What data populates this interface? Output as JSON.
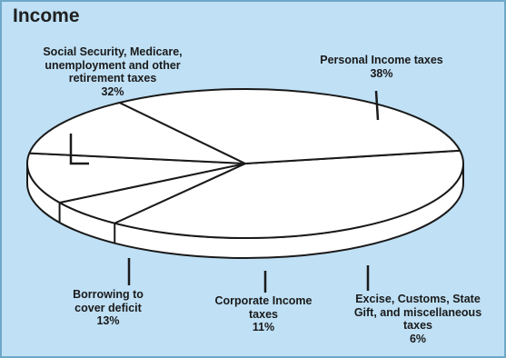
{
  "chart_data": {
    "type": "pie",
    "title": "Income",
    "slices": [
      {
        "label_lines": [
          "Personal Income taxes",
          "38%"
        ],
        "value": 38
      },
      {
        "label_lines": [
          "Excise, Customs, State",
          "Gift, and miscellaneous",
          "taxes",
          "6%"
        ],
        "value": 6
      },
      {
        "label_lines": [
          "Corporate Income",
          "taxes",
          "11%"
        ],
        "value": 11
      },
      {
        "label_lines": [
          "Borrowing to",
          "cover deficit",
          "13%"
        ],
        "value": 13
      },
      {
        "label_lines": [
          "Social Security, Medicare,",
          "unemployment and other",
          "retirement taxes",
          "32%"
        ],
        "value": 32
      }
    ],
    "colors": {
      "background": "#bfe0f5",
      "border": "#6fa7c8",
      "slice_fill": "#ffffff",
      "outline": "#1a1a1a"
    }
  }
}
